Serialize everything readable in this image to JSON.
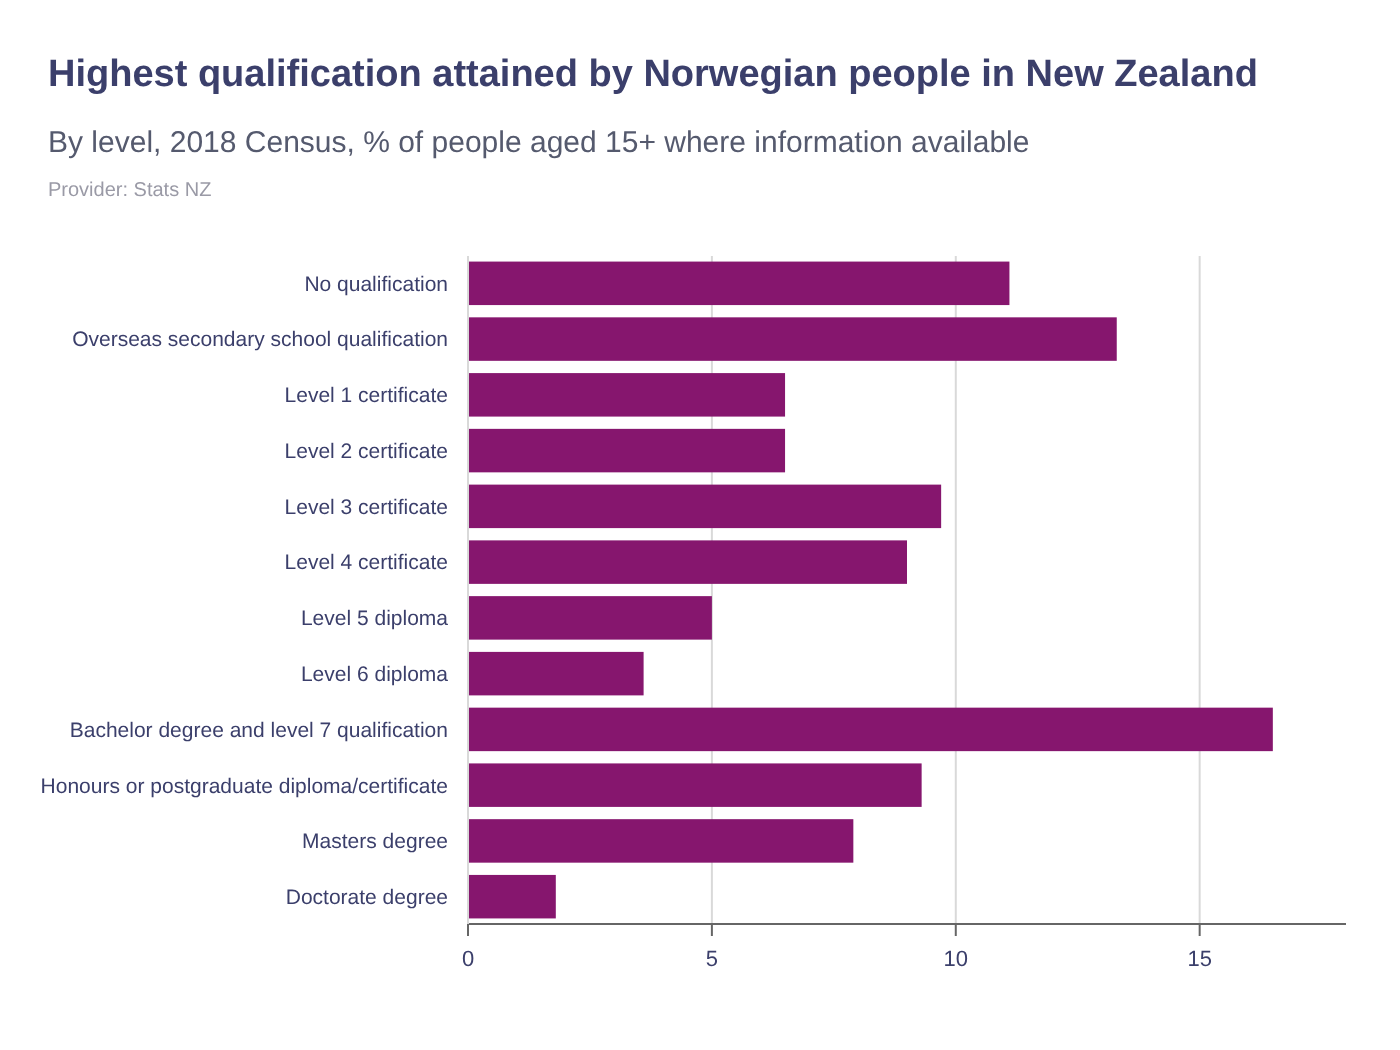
{
  "chart_data": {
    "type": "bar",
    "orientation": "horizontal",
    "title": "Highest qualification attained by Norwegian people in New Zealand",
    "subtitle": "By level, 2018 Census, % of people aged 15+ where information available",
    "annotations": [
      "Provider: Stats NZ"
    ],
    "categories": [
      "No qualification",
      "Overseas secondary school qualification",
      "Level 1 certificate",
      "Level 2 certificate",
      "Level 3 certificate",
      "Level 4 certificate",
      "Level 5 diploma",
      "Level 6 diploma",
      "Bachelor degree and level 7 qualification",
      "Honours or postgraduate diploma/certificate",
      "Masters degree",
      "Doctorate degree"
    ],
    "values": [
      11.1,
      13.3,
      6.5,
      6.5,
      9.7,
      9.0,
      5.0,
      3.6,
      16.5,
      9.3,
      7.9,
      1.8
    ],
    "color": "#86166e",
    "xlim": [
      0,
      18
    ],
    "xticks": [
      0,
      5,
      10,
      15
    ],
    "grid": "x"
  }
}
